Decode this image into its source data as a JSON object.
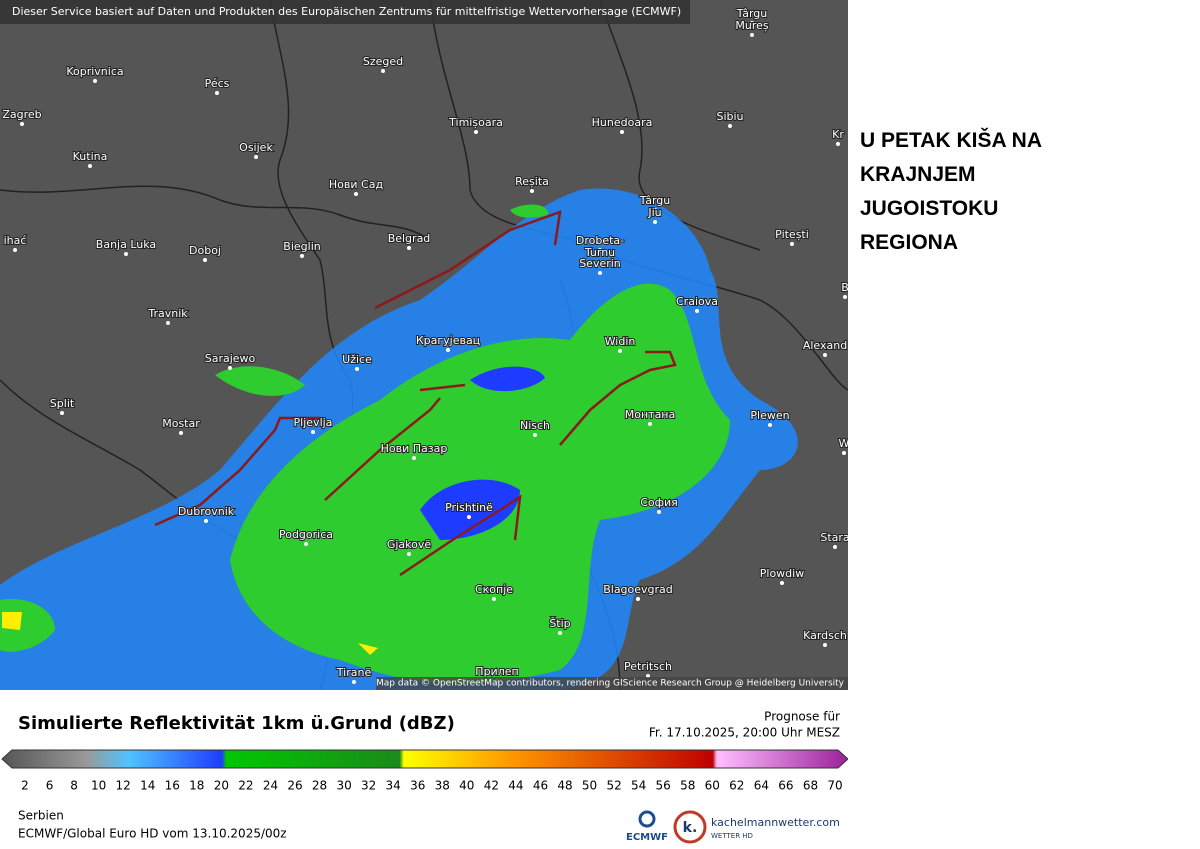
{
  "map": {
    "banner": "Dieser Service basiert auf Daten und Produkten des Europäischen Zentrums für mittelfristige Wettervorhersage (ECMWF)",
    "attribution": "Map data © OpenStreetMap contributors, rendering GIScience Research Group @ Heidelberg University",
    "cities": [
      "Târgu",
      "Mureș",
      "Koprivnica",
      "Pécs",
      "Szeged",
      "Zagreb",
      "Timișoara",
      "Hunedoara",
      "Sibiu",
      "Kr",
      "Kutina",
      "Osijek",
      "Нови Сад",
      "Reșita",
      "Târgu",
      "Jiu",
      "ihać",
      "Banja Luka",
      "Doboj",
      "Bieglin",
      "Belgrad",
      "Drobeta-",
      "Turnu",
      "Severin",
      "Pitești",
      "B",
      "Craiova",
      "Travnik",
      "Alexand",
      "Sarajewo",
      "Užice",
      "Крагујевац",
      "Widin",
      "Split",
      "Mostar",
      "Pljevlja",
      "Nisch",
      "Монтана",
      "Plewen",
      "W",
      "Нови Пазар",
      "Dubrovnik",
      "Prishtinë",
      "София",
      "Podgorica",
      "Gjakovë",
      "Stara",
      "Скопје",
      "Blagoevgrad",
      "Plowdiw",
      "Štip",
      "Kardsch",
      "Tiranë",
      "Прилеп",
      "Petritsch"
    ]
  },
  "headline": [
    "U PETAK KIŠA NA",
    "KRAJNJEM",
    "JUGOISTOKU",
    "REGIONA"
  ],
  "legend": {
    "title": "Simulierte Reflektivität 1km ü.Grund (dBZ)",
    "forecast_label": "Prognose für",
    "forecast_time": "Fr. 17.10.2025, 20:00 Uhr MESZ",
    "ticks": [
      2,
      6,
      8,
      10,
      12,
      14,
      16,
      18,
      20,
      22,
      24,
      26,
      28,
      30,
      32,
      34,
      36,
      38,
      40,
      42,
      44,
      46,
      48,
      50,
      52,
      54,
      56,
      58,
      60,
      62,
      64,
      66,
      68,
      70
    ]
  },
  "footer": {
    "region": "Serbien",
    "model": "ECMWF/Global Euro HD vom  13.10.2025/00z",
    "logo_ecmwf": "ECMWF",
    "logo_site": "kachelmannwetter.com",
    "logo_sub": "WETTER HD"
  }
}
